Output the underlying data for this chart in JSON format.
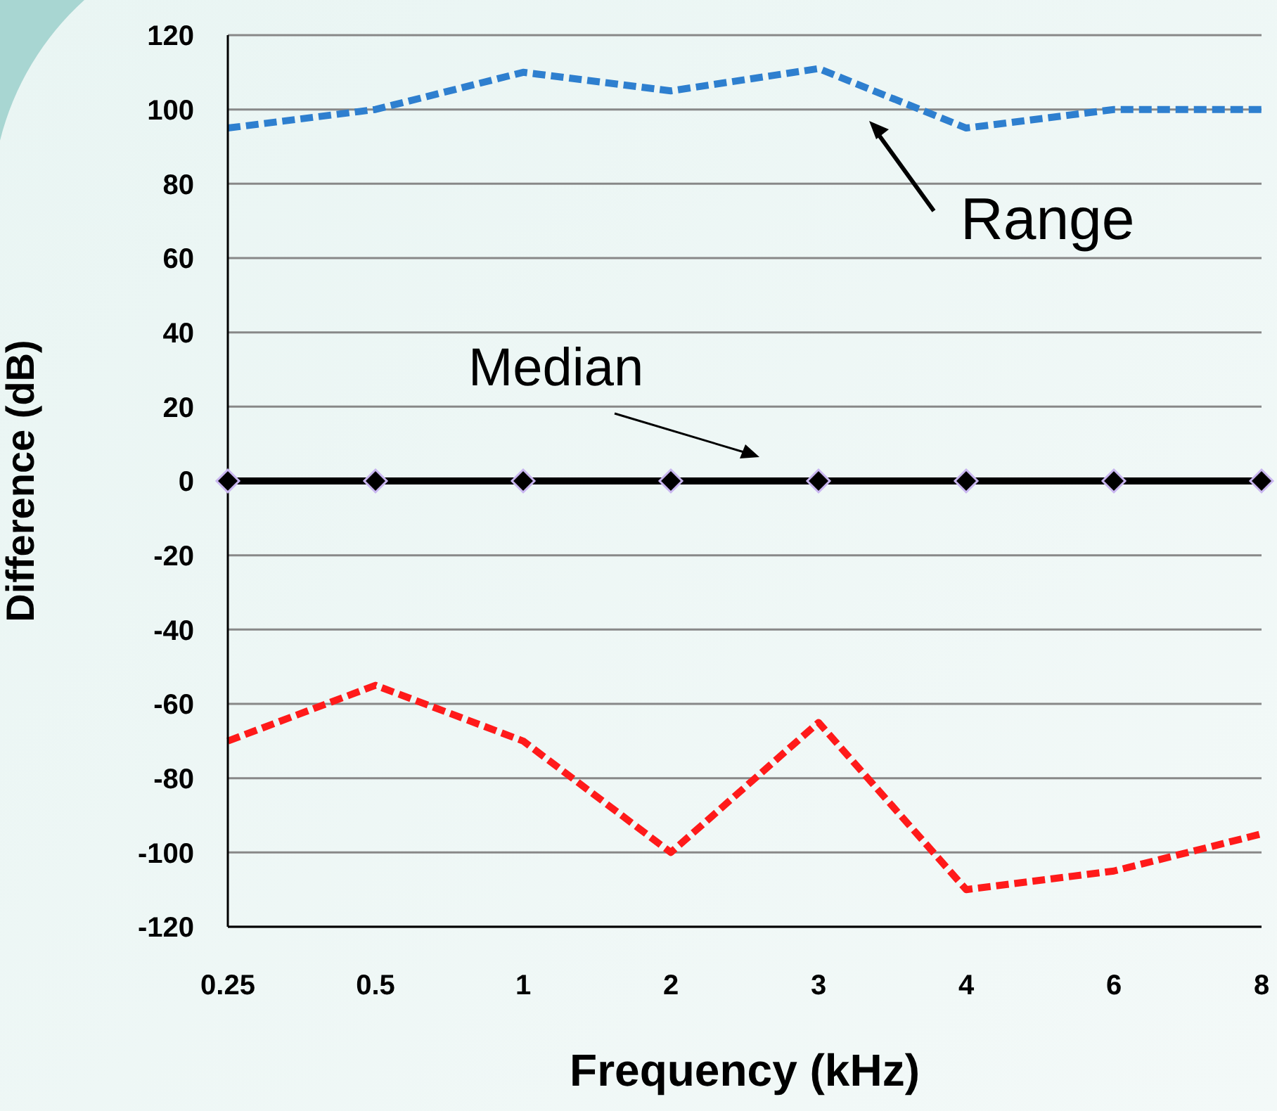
{
  "chart_data": {
    "type": "line",
    "xlabel": "Frequency (kHz)",
    "ylabel": "Difference (dB)",
    "categories": [
      "0.25",
      "0.5",
      "1",
      "2",
      "3",
      "4",
      "6",
      "8"
    ],
    "series": [
      {
        "color": "#2e7fcf",
        "values": [
          95,
          100,
          110,
          105,
          111,
          95,
          100,
          100
        ],
        "line_style": "dashed",
        "marker": "none"
      },
      {
        "color": "#000000",
        "values": [
          0,
          0,
          0,
          0,
          0,
          0,
          0,
          0
        ],
        "line_style": "solid",
        "marker": "diamond"
      },
      {
        "color": "#ff1a1a",
        "values": [
          -70,
          -55,
          -70,
          -100,
          -65,
          -110,
          -105,
          -95
        ],
        "line_style": "dashed",
        "marker": "none"
      }
    ],
    "ylim": [
      -120,
      120
    ],
    "yticks": [
      -120,
      -100,
      -80,
      -60,
      -40,
      -20,
      0,
      20,
      40,
      60,
      80,
      100,
      120
    ],
    "grid": "y",
    "annotations": [
      "Range",
      "Median"
    ]
  }
}
